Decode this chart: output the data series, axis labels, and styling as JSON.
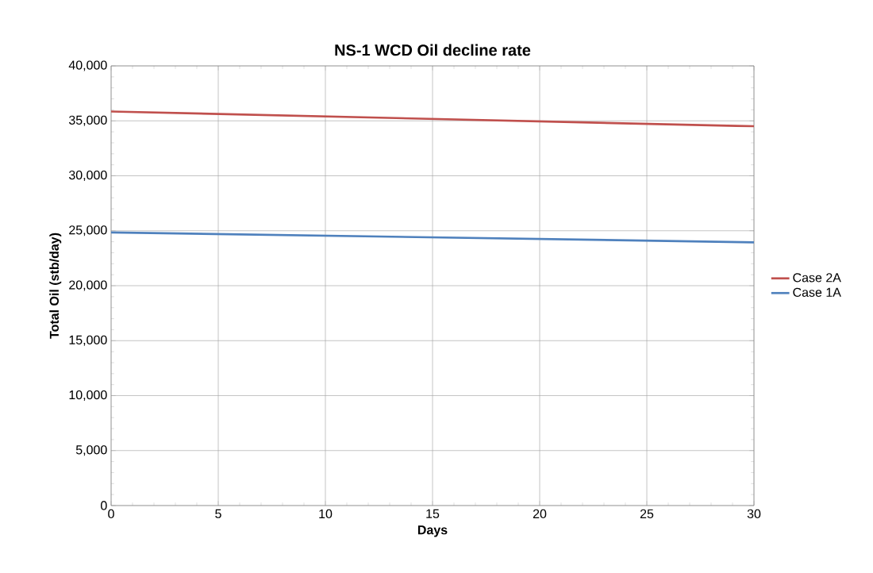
{
  "chart_data": {
    "type": "line",
    "title": "NS-1 WCD Oil decline rate",
    "xlabel": "Days",
    "ylabel": "Total Oil (stb/day)",
    "x": [
      0,
      30
    ],
    "series": [
      {
        "name": "Case 2A",
        "color": "#c0504d",
        "values": [
          35850,
          34500
        ]
      },
      {
        "name": "Case 1A",
        "color": "#4f81bd",
        "values": [
          24850,
          23950
        ]
      }
    ],
    "xlim": [
      0,
      30
    ],
    "xticks": [
      0,
      5,
      10,
      15,
      20,
      25,
      30
    ],
    "ylim": [
      0,
      40000
    ],
    "yticks": [
      {
        "value": 0,
        "label": "0"
      },
      {
        "value": 5000,
        "label": "5,000"
      },
      {
        "value": 10000,
        "label": "10,000"
      },
      {
        "value": 15000,
        "label": "15,000"
      },
      {
        "value": 20000,
        "label": "20,000"
      },
      {
        "value": 25000,
        "label": "25,000"
      },
      {
        "value": 30000,
        "label": "30,000"
      },
      {
        "value": 35000,
        "label": "35,000"
      },
      {
        "value": 40000,
        "label": "40,000"
      }
    ],
    "grid": true,
    "legend": "right",
    "marker": "none",
    "line_style": "solid"
  }
}
